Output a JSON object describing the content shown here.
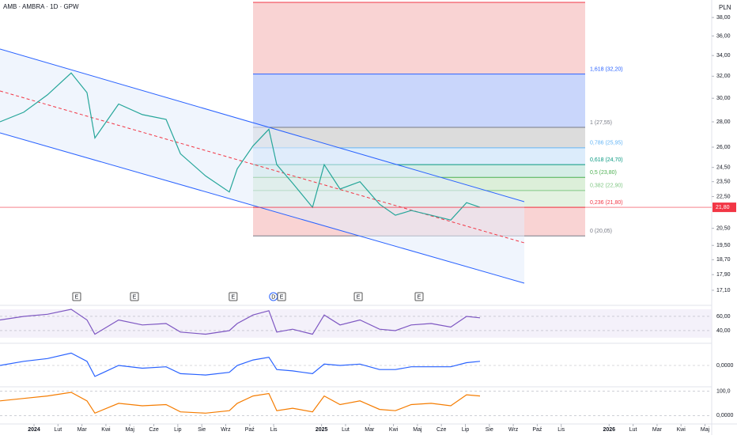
{
  "chart_data": {
    "type": "line",
    "title": "AMB · AMBRA · 1D · GPW",
    "currency": "PLN",
    "log_scale": true,
    "xlim": [
      -1.42,
      28.28
    ],
    "xticks": [
      {
        "value": 0,
        "label": "2024"
      },
      {
        "value": 1,
        "label": "Lut"
      },
      {
        "value": 2,
        "label": "Mar"
      },
      {
        "value": 3,
        "label": "Kwi"
      },
      {
        "value": 4,
        "label": "Maj"
      },
      {
        "value": 5,
        "label": "Cze"
      },
      {
        "value": 6,
        "label": "Lip"
      },
      {
        "value": 7,
        "label": "Sie"
      },
      {
        "value": 8,
        "label": "Wrz"
      },
      {
        "value": 9,
        "label": "Paź"
      },
      {
        "value": 10,
        "label": "Lis"
      },
      {
        "value": 12,
        "label": "2025"
      },
      {
        "value": 13,
        "label": "Lut"
      },
      {
        "value": 14,
        "label": "Mar"
      },
      {
        "value": 15,
        "label": "Kwi"
      },
      {
        "value": 16,
        "label": "Maj"
      },
      {
        "value": 17,
        "label": "Cze"
      },
      {
        "value": 18,
        "label": "Lip"
      },
      {
        "value": 19,
        "label": "Sie"
      },
      {
        "value": 20,
        "label": "Wrz"
      },
      {
        "value": 21,
        "label": "Paź"
      },
      {
        "value": 22,
        "label": "Lis"
      },
      {
        "value": 24,
        "label": "2026"
      },
      {
        "value": 25,
        "label": "Lut"
      },
      {
        "value": 26,
        "label": "Mar"
      },
      {
        "value": 27,
        "label": "Kwi"
      },
      {
        "value": 28,
        "label": "Maj"
      }
    ],
    "ylim": [
      16.4,
      40
    ],
    "yticks": [
      {
        "value": 38,
        "label": "38,00"
      },
      {
        "value": 36,
        "label": "36,00"
      },
      {
        "value": 34,
        "label": "34,00"
      },
      {
        "value": 32,
        "label": "32,00"
      },
      {
        "value": 30,
        "label": "30,00"
      },
      {
        "value": 28,
        "label": "28,00"
      },
      {
        "value": 26,
        "label": "26,00"
      },
      {
        "value": 24.5,
        "label": "24,50"
      },
      {
        "value": 23.5,
        "label": "23,50"
      },
      {
        "value": 22.5,
        "label": "22,50"
      },
      {
        "value": 20.5,
        "label": "20,50"
      },
      {
        "value": 19.5,
        "label": "19,50"
      },
      {
        "value": 18.7,
        "label": "18,70"
      },
      {
        "value": 17.9,
        "label": "17,90"
      },
      {
        "value": 17.1,
        "label": "17,10"
      }
    ],
    "x": [
      -1.42,
      -0.43,
      0.56,
      1.55,
      2.21,
      2.54,
      3.53,
      4.52,
      5.51,
      6.11,
      7.16,
      8.15,
      8.48,
      9.14,
      9.8,
      10.13,
      10.79,
      11.62,
      12.11,
      12.77,
      13.6,
      14.42,
      15.08,
      15.74,
      16.57,
      17.39,
      18.05,
      18.61
    ],
    "series": [
      {
        "color": "#26a69a",
        "values": [
          28.0,
          28.8,
          30.3,
          32.3,
          30.5,
          26.7,
          29.5,
          28.6,
          28.2,
          25.5,
          23.9,
          22.8,
          24.4,
          26.1,
          27.4,
          24.7,
          23.4,
          21.8,
          24.7,
          23.0,
          23.5,
          22.0,
          21.3,
          21.6,
          21.3,
          21.0,
          22.1,
          21.8
        ]
      }
    ],
    "price_tag": {
      "value": 21.8,
      "label": "21,80",
      "color": "#f23645"
    },
    "fib_levels": [
      {
        "price": 32.2,
        "label": "1,618 (32,20)",
        "color": "#2962ff",
        "fill": "#c9d6fb"
      },
      {
        "price": 27.55,
        "label": "1 (27,55)",
        "color": "#787b86",
        "fill": "#dcdcdc"
      },
      {
        "price": 25.95,
        "label": "0,786 (25,95)",
        "color": "#64b5f6",
        "fill": "#dcecfb"
      },
      {
        "price": 24.7,
        "label": "0,618 (24,70)",
        "color": "#089981",
        "fill": "#d5ede6"
      },
      {
        "price": 23.8,
        "label": "0,5 (23,80)",
        "color": "#4caf50",
        "fill": "#dcefd9"
      },
      {
        "price": 22.9,
        "label": "0,382 (22,90)",
        "color": "#81c784",
        "fill": "#e3f2e1"
      },
      {
        "price": 21.8,
        "label": "0,236 (21,80)",
        "color": "#f23645",
        "fill": "#f9d3d3"
      },
      {
        "price": 20.05,
        "label": "0 (20,05)",
        "color": "#787b86",
        "fill": "#f9d3d3"
      }
    ],
    "events": [
      {
        "x": 1.78,
        "label": "E"
      },
      {
        "x": 4.19,
        "label": "E"
      },
      {
        "x": 8.31,
        "label": "E"
      },
      {
        "x": 9.99,
        "label": "D"
      },
      {
        "x": 10.33,
        "label": "E"
      },
      {
        "x": 13.53,
        "label": "E"
      },
      {
        "x": 16.07,
        "label": "E"
      }
    ],
    "panes": [
      {
        "ylim": [
          24.4,
          73.3
        ],
        "yticks": [
          {
            "value": 60,
            "label": "60,00"
          },
          {
            "value": 40,
            "label": "40,00"
          }
        ],
        "series": [
          {
            "color": "#7e57c2",
            "values": [
              55,
              60,
              63,
              70,
              55,
              35,
              55,
              48,
              50,
              38,
              35,
              40,
              50,
              62,
              68,
              38,
              42,
              35,
              62,
              48,
              55,
              42,
              40,
              48,
              50,
              45,
              60,
              58
            ]
          }
        ]
      },
      {
        "ylim": [
          -1.5,
          1.5
        ],
        "yticks": [
          {
            "value": 0,
            "label": "0,0000"
          }
        ],
        "series": [
          {
            "color": "#2962ff",
            "values": [
              0,
              0.3,
              0.5,
              0.9,
              0.3,
              -0.8,
              0,
              -0.2,
              -0.1,
              -0.6,
              -0.7,
              -0.5,
              0,
              0.4,
              0.6,
              -0.3,
              -0.4,
              -0.6,
              0.1,
              0,
              0.1,
              -0.3,
              -0.3,
              -0.1,
              -0.1,
              -0.1,
              0.2,
              0.3
            ]
          }
        ]
      },
      {
        "ylim": [
          -31,
          111
        ],
        "yticks": [
          {
            "value": 100,
            "label": "100,0"
          },
          {
            "value": 0,
            "label": "0,0000"
          }
        ],
        "series": [
          {
            "color": "#f57c00",
            "values": [
              60,
              70,
              80,
              95,
              60,
              10,
              50,
              40,
              45,
              15,
              10,
              20,
              50,
              80,
              90,
              20,
              30,
              15,
              80,
              45,
              60,
              25,
              20,
              45,
              50,
              40,
              85,
              80
            ]
          }
        ]
      }
    ]
  }
}
